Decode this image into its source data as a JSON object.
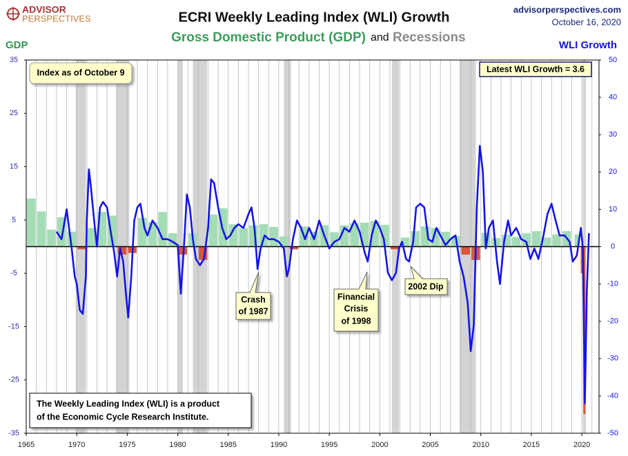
{
  "brand": {
    "line1": "ADVISOR",
    "line2": "PERSPECTIVES"
  },
  "site": "advisorperspectives.com",
  "date": "October 16, 2020",
  "chart_data": {
    "type": "bar-line",
    "title": "ECRI Weekly Leading Index (WLI) Growth",
    "subtitle": {
      "part1": "Gross Domestic Product (GDP)",
      "part2": "and",
      "part3": "Recessions"
    },
    "y_label": "GDP",
    "y2_label": "WLI Growth",
    "xlim": [
      1965,
      2021.7
    ],
    "xticks": [
      1965,
      1970,
      1975,
      1980,
      1985,
      1990,
      1995,
      2000,
      2005,
      2010,
      2015,
      2020
    ],
    "x_grid_step": 1,
    "ylim": [
      -35,
      35
    ],
    "yticks": [
      35,
      25,
      15,
      5,
      -5,
      -15,
      -25,
      -35
    ],
    "y2lim": [
      -50,
      50
    ],
    "y2ticks": [
      50,
      40,
      30,
      20,
      10,
      0,
      -10,
      -20,
      -30,
      -40,
      -50
    ],
    "recessions": [
      [
        1969.9,
        1970.9
      ],
      [
        1973.9,
        1975.2
      ],
      [
        1980.0,
        1980.5
      ],
      [
        1981.5,
        1982.9
      ],
      [
        1990.5,
        1991.2
      ],
      [
        2001.2,
        2001.9
      ],
      [
        2007.9,
        2009.5
      ],
      [
        2020.1,
        2020.4
      ]
    ],
    "recession_color": "#d3d3d3",
    "series": [
      {
        "name": "GDP",
        "positive_color": "#a3dcb5",
        "negative_color": "#d5573e",
        "x": [
          1965.5,
          1966.5,
          1967.5,
          1968.5,
          1969.5,
          1970.5,
          1971.5,
          1972.5,
          1973.5,
          1974.5,
          1975.5,
          1976.5,
          1977.5,
          1978.5,
          1979.5,
          1980.5,
          1981.5,
          1982.5,
          1983.5,
          1984.5,
          1985.5,
          1986.5,
          1987.5,
          1988.5,
          1989.5,
          1990.5,
          1991.5,
          1992.5,
          1993.5,
          1994.5,
          1995.5,
          1996.5,
          1997.5,
          1998.5,
          1999.5,
          2000.5,
          2001.5,
          2002.5,
          2003.5,
          2004.5,
          2005.5,
          2006.5,
          2007.5,
          2008.5,
          2009.5,
          2010.5,
          2011.5,
          2012.5,
          2013.5,
          2014.5,
          2015.5,
          2016.5,
          2017.5,
          2018.5,
          2019.5,
          2020.0,
          2020.25
        ],
        "values": [
          9,
          6.6,
          3.2,
          5.5,
          2.8,
          -0.5,
          3.5,
          6.5,
          5.8,
          -1.5,
          -1.2,
          5.4,
          4.6,
          6.5,
          2.5,
          -1.5,
          2.5,
          -2.5,
          6,
          7.2,
          4.2,
          3.5,
          4,
          4.2,
          3.7,
          1.9,
          -0.5,
          3.8,
          2.8,
          4,
          2.7,
          4,
          4.4,
          4.5,
          4.8,
          4.1,
          -0.5,
          1.7,
          2.9,
          3.8,
          3.5,
          2.8,
          2,
          -1.5,
          -2.5,
          2.6,
          1.6,
          2.2,
          1.8,
          2.5,
          2.9,
          1.7,
          2.3,
          2.9,
          2.3,
          -5,
          -31.4
        ]
      },
      {
        "name": "WLI Growth",
        "axis": "y2",
        "color": "#1414e6",
        "x": [
          1968.0,
          1968.5,
          1969.0,
          1969.5,
          1969.8,
          1970.0,
          1970.3,
          1970.6,
          1970.9,
          1971.0,
          1971.2,
          1971.4,
          1971.8,
          1972.0,
          1972.3,
          1972.6,
          1973.0,
          1973.3,
          1973.7,
          1974.0,
          1974.3,
          1974.6,
          1974.9,
          1975.1,
          1975.4,
          1975.7,
          1976.0,
          1976.3,
          1976.7,
          1977.0,
          1977.5,
          1978.0,
          1978.5,
          1979.0,
          1979.5,
          1980.0,
          1980.3,
          1980.6,
          1980.9,
          1981.2,
          1981.5,
          1981.8,
          1982.2,
          1982.6,
          1983.0,
          1983.3,
          1983.6,
          1984.0,
          1984.4,
          1984.8,
          1985.2,
          1985.6,
          1986.0,
          1986.5,
          1987.0,
          1987.3,
          1987.6,
          1987.9,
          1988.2,
          1988.6,
          1989.0,
          1989.5,
          1990.0,
          1990.5,
          1990.8,
          1991.0,
          1991.4,
          1991.8,
          1992.2,
          1992.6,
          1993.0,
          1993.5,
          1994.0,
          1994.5,
          1995.0,
          1995.5,
          1996.0,
          1996.5,
          1997.0,
          1997.5,
          1998.0,
          1998.5,
          1998.8,
          1999.2,
          1999.6,
          2000.0,
          2000.4,
          2000.8,
          2001.2,
          2001.6,
          2001.9,
          2002.2,
          2002.6,
          2002.9,
          2003.3,
          2003.6,
          2004.0,
          2004.4,
          2004.8,
          2005.2,
          2005.6,
          2006.0,
          2006.5,
          2007.0,
          2007.5,
          2007.9,
          2008.3,
          2008.7,
          2009.0,
          2009.3,
          2009.6,
          2009.9,
          2010.2,
          2010.5,
          2010.8,
          2011.2,
          2011.6,
          2011.9,
          2012.3,
          2012.7,
          2013.0,
          2013.5,
          2014.0,
          2014.5,
          2014.9,
          2015.3,
          2015.7,
          2016.2,
          2016.6,
          2017.0,
          2017.4,
          2017.8,
          2018.3,
          2018.8,
          2019.1,
          2019.5,
          2019.9,
          2020.1,
          2020.3,
          2020.5,
          2020.7
        ],
        "values": [
          4,
          2,
          10,
          -0.5,
          -8,
          -10,
          -17,
          -18,
          -8,
          7,
          20.7,
          16,
          5,
          0,
          10.5,
          12,
          10.5,
          5,
          -1.5,
          -8,
          -0.5,
          -4,
          -13.5,
          -19,
          -8,
          7,
          10.5,
          11.5,
          5,
          3,
          7,
          5,
          2,
          2,
          1.3,
          0.4,
          -12.6,
          -0.5,
          14,
          10.5,
          2,
          -3.3,
          -5,
          -3.3,
          5,
          18,
          17,
          10.5,
          5,
          2,
          3,
          5,
          6,
          5,
          8.7,
          10.5,
          5,
          -6,
          -0.5,
          3,
          2,
          2,
          1.3,
          -0.5,
          -8,
          -6,
          2,
          7,
          5,
          2,
          5,
          2,
          7,
          3,
          -0.5,
          1.3,
          2,
          5,
          4,
          7,
          4,
          -1.5,
          -4,
          3,
          7,
          5,
          2,
          -7,
          -9,
          -7,
          -0.5,
          1.3,
          -3.3,
          -4,
          1.3,
          10.5,
          11.5,
          10.5,
          2,
          1.3,
          5,
          3,
          0.4,
          2,
          3,
          -4,
          -8,
          -15,
          -28,
          -21,
          10.5,
          27,
          20,
          -0.5,
          5,
          7,
          -4,
          -10,
          1.3,
          7,
          3,
          5,
          2,
          1.3,
          -3.3,
          -0.5,
          -3.3,
          3,
          8.7,
          11.5,
          7,
          3,
          3,
          1.3,
          -4,
          -2.4,
          5,
          -0.5,
          -42,
          -11.6,
          3.6
        ]
      }
    ],
    "annotations": {
      "index_date": "Index as of October 9",
      "latest": "Latest WLI Growth = 3.6",
      "crash": [
        "Crash",
        "of 1987"
      ],
      "crisis": [
        "Financial",
        "Crisis",
        "of 1998"
      ],
      "dip": "2002 Dip",
      "source": [
        "The Weekly Leading Index (WLI) is a product",
        "of the Economic Cycle Research Institute."
      ]
    }
  }
}
